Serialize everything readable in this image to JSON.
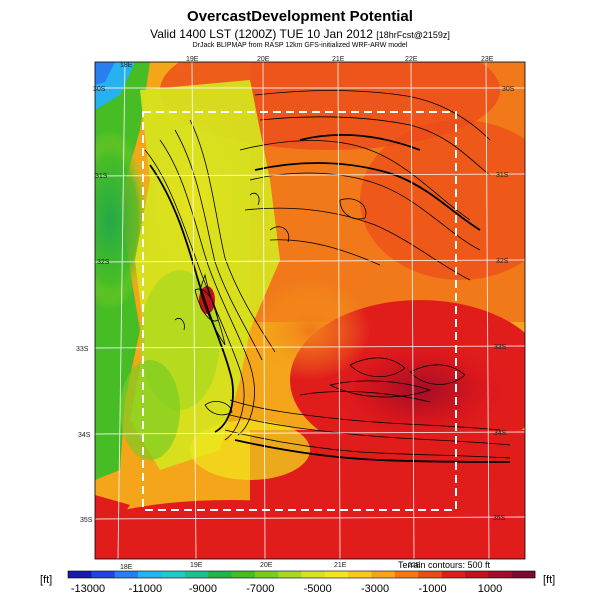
{
  "header": {
    "title": "OvercastDevelopment Potential",
    "subtitle": "Valid 1400 LST (1200Z) TUE 10 Jan 2012",
    "subtitle_note": "[18hrFcst@2159z]",
    "credit": "DrJack BLIPMAP from RASP 12km GFS-initialized WRF-ARW model"
  },
  "map": {
    "lon_labels_top": [
      "18E",
      "19E",
      "20E",
      "21E",
      "22E",
      "23E"
    ],
    "lon_labels_bottom": [
      "18E",
      "19E",
      "20E",
      "21E",
      "22E"
    ],
    "lat_labels_left": [
      "30S",
      "31S",
      "32S",
      "33S",
      "34S",
      "35S"
    ],
    "lat_labels_right": [
      "30S",
      "31S",
      "32S",
      "33S",
      "34S",
      "35S"
    ],
    "terrain_note": "Terrain contours: 500 ft"
  },
  "colorbar": {
    "unit_left": "[ft]",
    "unit_right": "[ft]",
    "ticks": [
      "-13000",
      "-11000",
      "-9000",
      "-7000",
      "-5000",
      "-3000",
      "-1000",
      "1000"
    ],
    "colors": [
      "#1a1aa8",
      "#2244dd",
      "#2a7ff0",
      "#26b2ee",
      "#22c9c9",
      "#1fbf8f",
      "#23b34a",
      "#47bd25",
      "#7acc22",
      "#a8d81f",
      "#d6e21d",
      "#f2e61c",
      "#f6c91b",
      "#f5a51a",
      "#f1791a",
      "#ec4c1a",
      "#e11d1c",
      "#c2121e",
      "#9c0e2a",
      "#7a0a33"
    ]
  }
}
